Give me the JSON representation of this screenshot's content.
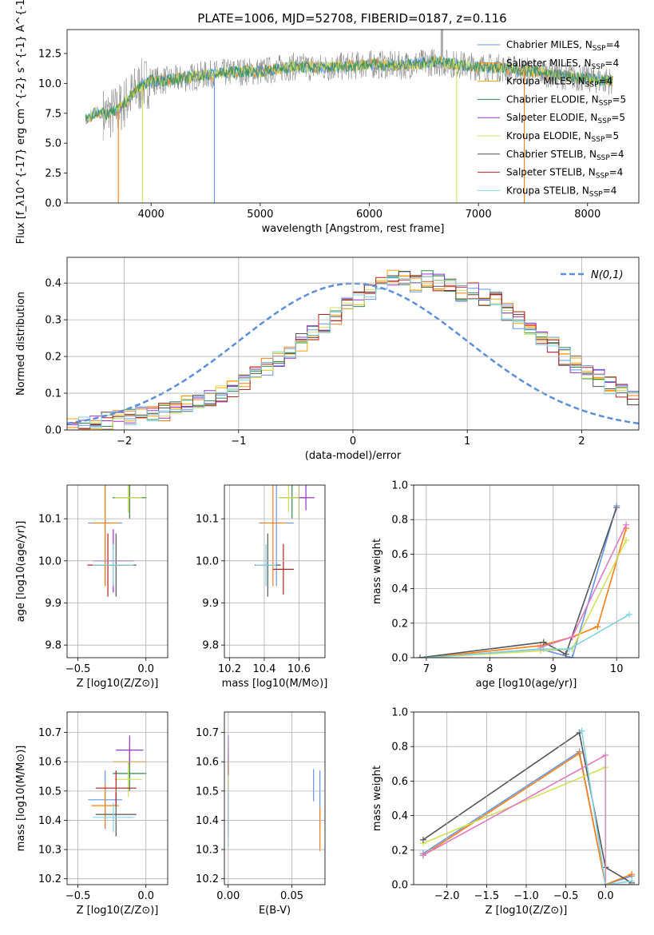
{
  "title": "PLATE=1006, MJD=52708, FIBERID=0187, z=0.116",
  "colors": [
    "#6495ed",
    "#ff7f0e",
    "#ffa500",
    "#2e8b57",
    "#9932cc",
    "#d4e157",
    "#555555",
    "#b22222",
    "#7fd3e0"
  ],
  "chart_data": [
    {
      "type": "line",
      "id": "spectrum",
      "xlabel": "wavelength [Angstrom, rest frame]",
      "ylabel": "Flux [f_λ10^{-17} erg cm^{-2} s^{-1} A^{-1}]",
      "xlim": [
        3230,
        8470
      ],
      "ylim": [
        0,
        14.5
      ],
      "xticks": [
        4000,
        5000,
        6000,
        7000,
        8000
      ],
      "yticks": [
        0.0,
        2.5,
        5.0,
        7.5,
        10.0,
        12.5
      ],
      "legend": [
        "Chabrier MILES, NSSP=4",
        "Salpeter MILES, NSSP=4",
        "Kroupa MILES, NSSP=4",
        "Chabrier ELODIE, NSSP=5",
        "Salpeter ELODIE, NSSP=5",
        "Kroupa ELODIE, NSSP=5",
        "Chabrier STELIB, NSSP=4",
        "Salpeter STELIB, NSSP=4",
        "Kroupa STELIB, NSSP=4"
      ],
      "legend_loc": "upper right",
      "series": [
        {
          "x": [
            3400,
            3500,
            3600,
            3700,
            3800,
            3900,
            4000,
            4200,
            4500,
            4800,
            5000,
            5300,
            5600,
            6000,
            6300,
            6600,
            7000,
            7200,
            7400,
            7600,
            7800,
            8000,
            8200
          ],
          "y": [
            7.0,
            7.6,
            7.4,
            7.8,
            8.8,
            9.8,
            10.2,
            10.3,
            10.7,
            11.0,
            11.0,
            11.4,
            11.3,
            11.6,
            11.5,
            11.8,
            11.4,
            11.3,
            11.1,
            10.9,
            10.6,
            10.4,
            10.2
          ]
        }
      ]
    },
    {
      "type": "bar",
      "id": "residuals",
      "xlabel": "(data-model)/error",
      "ylabel": "Normed distribution",
      "xlim": [
        -2.5,
        2.5
      ],
      "ylim": [
        0,
        0.47
      ],
      "xticks": [
        -2,
        -1,
        0,
        1,
        2
      ],
      "yticks": [
        0.0,
        0.1,
        0.2,
        0.3,
        0.4
      ],
      "legend": [
        "N(0,1)"
      ],
      "legend_loc": "upper right",
      "bin_edges_start": -2.5,
      "bin_width": 0.1,
      "values": [
        0.01,
        0.015,
        0.02,
        0.025,
        0.03,
        0.035,
        0.04,
        0.045,
        0.05,
        0.06,
        0.07,
        0.08,
        0.09,
        0.1,
        0.115,
        0.13,
        0.15,
        0.17,
        0.19,
        0.21,
        0.24,
        0.27,
        0.29,
        0.31,
        0.34,
        0.36,
        0.38,
        0.4,
        0.41,
        0.42,
        0.4,
        0.41,
        0.4,
        0.39,
        0.37,
        0.38,
        0.36,
        0.35,
        0.32,
        0.3,
        0.28,
        0.25,
        0.23,
        0.2,
        0.18,
        0.16,
        0.14,
        0.12,
        0.1,
        0.09
      ],
      "gauss": true
    },
    {
      "type": "scatter",
      "id": "age-vs-Z",
      "xlabel": "Z [log10(Z/Z⊙)]",
      "ylabel": "age  [log10(age/yr)]",
      "xlim": [
        -0.58,
        0.16
      ],
      "ylim": [
        9.77,
        10.18
      ],
      "xticks": [
        -0.5,
        0.0
      ],
      "yticks": [
        9.8,
        9.9,
        10.0,
        10.1
      ],
      "points": [
        {
          "x": -0.3,
          "y": 10.09,
          "xerr": 0.25,
          "yerr": 0.3
        },
        {
          "x": -0.3,
          "y": 10.09,
          "xerr": 0.2,
          "yerr": 0.3
        },
        {
          "x": -0.12,
          "y": 10.15,
          "xerr": 0.25,
          "yerr": 0.1
        },
        {
          "x": -0.12,
          "y": 10.15,
          "xerr": 0.25,
          "yerr": 0.1
        },
        {
          "x": -0.24,
          "y": 10.0,
          "xerr": 0.3,
          "yerr": 0.15
        },
        {
          "x": -0.13,
          "y": 10.15,
          "xerr": 0.2,
          "yerr": 0.07
        },
        {
          "x": -0.22,
          "y": 9.99,
          "xerr": 0.3,
          "yerr": 0.15
        },
        {
          "x": -0.28,
          "y": 9.99,
          "xerr": 0.3,
          "yerr": 0.15
        },
        {
          "x": -0.24,
          "y": 9.99,
          "xerr": 0.3,
          "yerr": 0.1
        }
      ]
    },
    {
      "type": "scatter",
      "id": "age-vs-mass",
      "xlabel": "mass [log10(M/M⊙)]",
      "ylabel": "",
      "xlim": [
        10.17,
        10.75
      ],
      "ylim": [
        9.77,
        10.18
      ],
      "xticks": [
        10.2,
        10.4,
        10.6
      ],
      "yticks": [
        9.8,
        9.9,
        10.0,
        10.1
      ],
      "points": [
        {
          "x": 10.47,
          "y": 10.09,
          "xerr": 0.2,
          "yerr": 0.3
        },
        {
          "x": 10.45,
          "y": 10.09,
          "xerr": 0.15,
          "yerr": 0.3
        },
        {
          "x": 10.6,
          "y": 10.15,
          "xerr": 0.15,
          "yerr": 0.1
        },
        {
          "x": 10.56,
          "y": 10.15,
          "xerr": 0.15,
          "yerr": 0.1
        },
        {
          "x": 10.64,
          "y": 10.15,
          "xerr": 0.1,
          "yerr": 0.06
        },
        {
          "x": 10.54,
          "y": 10.15,
          "xerr": 0.12,
          "yerr": 0.07
        },
        {
          "x": 10.42,
          "y": 9.99,
          "xerr": 0.15,
          "yerr": 0.15
        },
        {
          "x": 10.51,
          "y": 9.98,
          "xerr": 0.12,
          "yerr": 0.12
        },
        {
          "x": 10.41,
          "y": 9.99,
          "xerr": 0.12,
          "yerr": 0.1
        }
      ]
    },
    {
      "type": "line",
      "id": "weight-vs-age",
      "xlabel": "age  [log10(age/yr)]",
      "ylabel": "mass weight",
      "xlim": [
        6.8,
        10.35
      ],
      "ylim": [
        0,
        1
      ],
      "xticks": [
        7,
        8,
        9,
        10
      ],
      "yticks": [
        0.0,
        0.2,
        0.4,
        0.6,
        0.8,
        1.0
      ],
      "series": [
        {
          "x": [
            7.0,
            8.8,
            9.3,
            10.0
          ],
          "y": [
            0.0,
            0.05,
            0.0,
            0.88
          ]
        },
        {
          "x": [
            7.0,
            8.8,
            9.3,
            9.7,
            10.15
          ],
          "y": [
            0.0,
            0.07,
            0.12,
            0.18,
            0.75
          ]
        },
        {
          "x": [
            7.0,
            8.8,
            9.3,
            10.15
          ],
          "y": [
            0.0,
            0.04,
            0.05,
            0.68
          ]
        },
        {
          "x": [
            6.9,
            8.85,
            9.2,
            10.0
          ],
          "y": [
            0.0,
            0.09,
            0.02,
            0.87
          ]
        },
        {
          "x": [
            8.8,
            9.3,
            10.15
          ],
          "y": [
            0.06,
            0.12,
            0.77
          ]
        },
        {
          "x": [
            7.0,
            8.85,
            9.25,
            10.2
          ],
          "y": [
            0.0,
            0.05,
            0.05,
            0.25
          ]
        }
      ]
    },
    {
      "type": "scatter",
      "id": "mass-vs-Z",
      "xlabel": "Z [log10(Z/Z⊙)]",
      "ylabel": "mass [log10(M/M⊙)]",
      "xlim": [
        -0.58,
        0.16
      ],
      "ylim": [
        10.18,
        10.77
      ],
      "xticks": [
        -0.5,
        0.0
      ],
      "yticks": [
        10.2,
        10.3,
        10.4,
        10.5,
        10.6,
        10.7
      ],
      "points": [
        {
          "x": -0.3,
          "y": 10.47,
          "xerr": 0.25,
          "yerr": 0.2
        },
        {
          "x": -0.3,
          "y": 10.45,
          "xerr": 0.2,
          "yerr": 0.15
        },
        {
          "x": -0.12,
          "y": 10.6,
          "xerr": 0.25,
          "yerr": 0.1
        },
        {
          "x": -0.12,
          "y": 10.56,
          "xerr": 0.25,
          "yerr": 0.12
        },
        {
          "x": -0.12,
          "y": 10.64,
          "xerr": 0.2,
          "yerr": 0.1
        },
        {
          "x": -0.13,
          "y": 10.54,
          "xerr": 0.2,
          "yerr": 0.12
        },
        {
          "x": -0.22,
          "y": 10.42,
          "xerr": 0.3,
          "yerr": 0.15
        },
        {
          "x": -0.22,
          "y": 10.51,
          "xerr": 0.3,
          "yerr": 0.12
        },
        {
          "x": -0.24,
          "y": 10.41,
          "xerr": 0.3,
          "yerr": 0.1
        }
      ]
    },
    {
      "type": "scatter",
      "id": "mass-vs-ebv",
      "xlabel": "E(B-V)",
      "ylabel": "",
      "xlim": [
        -0.003,
        0.076
      ],
      "ylim": [
        10.18,
        10.77
      ],
      "xticks": [
        0.0,
        0.05
      ],
      "yticks": [
        10.2,
        10.3,
        10.4,
        10.5,
        10.6,
        10.7
      ],
      "points": [
        {
          "x": 0.072,
          "y": 10.47,
          "xerr": 0,
          "yerr": 0.2
        },
        {
          "x": 0.072,
          "y": 10.37,
          "xerr": 0,
          "yerr": 0.15
        },
        {
          "x": 0.0,
          "y": 10.6,
          "xerr": 0,
          "yerr": 0.1
        },
        {
          "x": 0.0,
          "y": 10.56,
          "xerr": 0,
          "yerr": 0.12
        },
        {
          "x": 0.0,
          "y": 10.64,
          "xerr": 0,
          "yerr": 0.1
        },
        {
          "x": 0.0,
          "y": 10.54,
          "xerr": 0,
          "yerr": 0.12
        },
        {
          "x": 0.0,
          "y": 10.42,
          "xerr": 0,
          "yerr": 0.15
        },
        {
          "x": 0.0,
          "y": 10.58,
          "xerr": 0,
          "yerr": 0.05
        },
        {
          "x": 0.0,
          "y": 10.41,
          "xerr": 0,
          "yerr": 0.2
        },
        {
          "x": 0.067,
          "y": 10.52,
          "xerr": 0,
          "yerr": 0.11
        }
      ]
    },
    {
      "type": "line",
      "id": "weight-vs-Z",
      "xlabel": "Z [log10(Z/Z⊙)]",
      "ylabel": "mass weight",
      "xlim": [
        -2.42,
        0.42
      ],
      "ylim": [
        0,
        1
      ],
      "xticks": [
        -2.0,
        -1.5,
        -1.0,
        -0.5,
        0.0
      ],
      "yticks": [
        0.0,
        0.2,
        0.4,
        0.6,
        0.8,
        1.0
      ],
      "series": [
        {
          "x": [
            -2.3,
            -0.33,
            0.0,
            0.33
          ],
          "y": [
            0.18,
            0.77,
            0.0,
            0.05
          ]
        },
        {
          "x": [
            -2.3,
            -0.33,
            0.0,
            0.33
          ],
          "y": [
            0.17,
            0.76,
            0.0,
            0.06
          ]
        },
        {
          "x": [
            -2.3,
            0.0,
            0.0,
            0.33
          ],
          "y": [
            0.24,
            0.68,
            0.0,
            0.0
          ]
        },
        {
          "x": [
            -2.3,
            -0.33,
            0.0,
            0.33
          ],
          "y": [
            0.26,
            0.88,
            0.1,
            0.01
          ]
        },
        {
          "x": [
            -2.3,
            0.0,
            0.0,
            0.33
          ],
          "y": [
            0.17,
            0.75,
            0.0,
            0.0
          ]
        },
        {
          "x": [
            -0.3,
            -0.3,
            0.0,
            0.33
          ],
          "y": [
            0.89,
            0.89,
            0.0,
            0.02
          ]
        }
      ]
    }
  ]
}
